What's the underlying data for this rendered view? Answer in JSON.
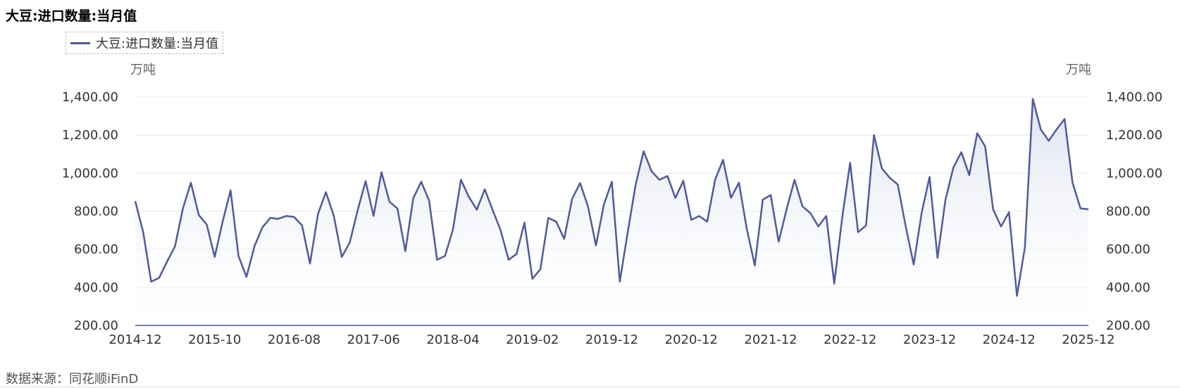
{
  "title": "大豆:进口数量:当月值",
  "legend_label": "大豆:进口数量:当月值",
  "unit_left": "万吨",
  "unit_right": "万吨",
  "source": "数据来源：同花顺iFinD",
  "colors": {
    "line": "#4f5a9c",
    "area_top": "#dfe2f0",
    "grid": "#e8e8ee",
    "axis": "#4f5a9c"
  },
  "chart_data": {
    "type": "area",
    "title": "大豆:进口数量:当月值",
    "ylabel": "万吨",
    "ylim": [
      200,
      1400
    ],
    "yticks": [
      "200.00",
      "400.00",
      "600.00",
      "800.00",
      "1,000.00",
      "1,200.00",
      "1,400.00"
    ],
    "xticks": [
      "2014-12",
      "2015-10",
      "2016-08",
      "2017-06",
      "2018-04",
      "2019-02",
      "2019-12",
      "2020-12",
      "2021-12",
      "2022-12",
      "2023-12",
      "2024-12",
      "2025-12"
    ],
    "grid": true,
    "legend_position": "top-left",
    "series": [
      {
        "name": "大豆:进口数量:当月值",
        "values": [
          853,
          690,
          430,
          450,
          535,
          615,
          815,
          950,
          780,
          730,
          560,
          745,
          910,
          565,
          455,
          615,
          715,
          765,
          760,
          775,
          770,
          725,
          525,
          785,
          900,
          775,
          560,
          635,
          805,
          958,
          775,
          1005,
          850,
          815,
          590,
          868,
          955,
          855,
          545,
          565,
          705,
          965,
          875,
          808,
          915,
          805,
          700,
          545,
          575,
          740,
          445,
          495,
          765,
          745,
          655,
          865,
          948,
          825,
          620,
          835,
          955,
          430,
          690,
          940,
          1115,
          1010,
          965,
          985,
          870,
          960,
          755,
          775,
          745,
          965,
          1070,
          870,
          950,
          705,
          515,
          860,
          885,
          640,
          810,
          965,
          825,
          790,
          720,
          775,
          420,
          765,
          1055,
          690,
          725,
          1200,
          1025,
          975,
          940,
          720,
          520,
          790,
          980,
          555,
          860,
          1030,
          1110,
          990,
          1210,
          1140,
          810,
          720,
          795,
          355,
          610,
          1390,
          1230,
          1170,
          1230,
          1285,
          950,
          815,
          810
        ]
      }
    ]
  }
}
